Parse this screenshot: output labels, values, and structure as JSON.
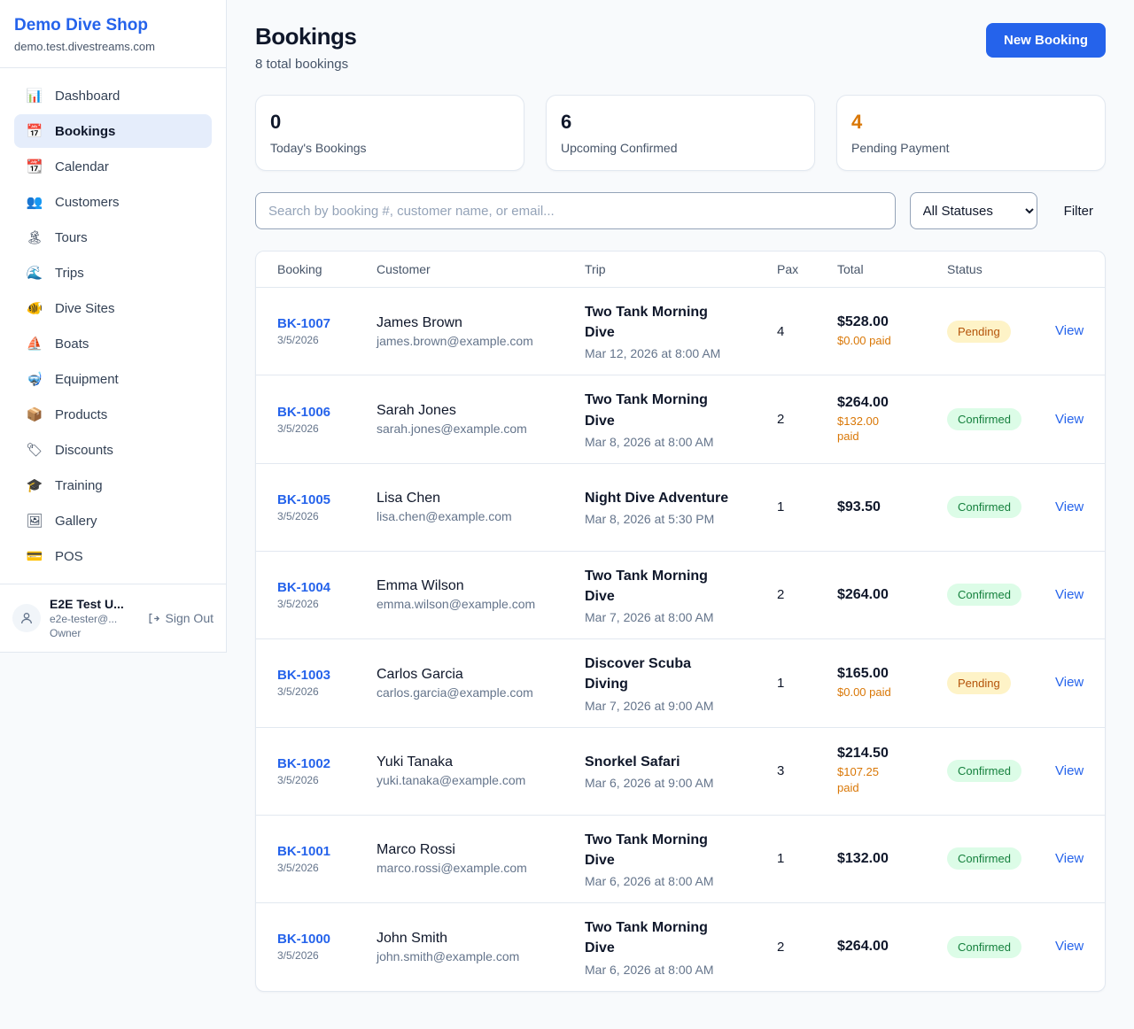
{
  "colors": {
    "accent": "#2563eb",
    "orange": "#d97706",
    "pending_bg": "#fef3c7",
    "pending_text": "#b45309",
    "confirmed_bg": "#dcfce7",
    "confirmed_text": "#15803d"
  },
  "sidebar": {
    "brand": {
      "title": "Demo Dive Shop",
      "subtitle": "demo.test.divestreams.com"
    },
    "items": [
      {
        "icon": "📊",
        "label": "Dashboard",
        "active": false
      },
      {
        "icon": "📅",
        "label": "Bookings",
        "active": true
      },
      {
        "icon": "📆",
        "label": "Calendar",
        "active": false
      },
      {
        "icon": "👥",
        "label": "Customers",
        "active": false
      },
      {
        "icon": "🏝",
        "label": "Tours",
        "active": false
      },
      {
        "icon": "🌊",
        "label": "Trips",
        "active": false
      },
      {
        "icon": "🐠",
        "label": "Dive Sites",
        "active": false
      },
      {
        "icon": "⛵",
        "label": "Boats",
        "active": false
      },
      {
        "icon": "🤿",
        "label": "Equipment",
        "active": false
      },
      {
        "icon": "📦",
        "label": "Products",
        "active": false
      },
      {
        "icon": "🏷",
        "label": "Discounts",
        "active": false
      },
      {
        "icon": "🎓",
        "label": "Training",
        "active": false
      },
      {
        "icon": "🖼",
        "label": "Gallery",
        "active": false
      },
      {
        "icon": "💳",
        "label": "POS",
        "active": false
      }
    ],
    "user": {
      "name": "E2E Test U...",
      "email": "e2e-tester@...",
      "role": "Owner",
      "signout_label": "Sign Out"
    }
  },
  "header": {
    "title": "Bookings",
    "subtitle": "8 total bookings",
    "new_booking_label": "New Booking"
  },
  "stats": [
    {
      "value": "0",
      "label": "Today's Bookings",
      "value_color": "#0f172a"
    },
    {
      "value": "6",
      "label": "Upcoming Confirmed",
      "value_color": "#0f172a"
    },
    {
      "value": "4",
      "label": "Pending Payment",
      "value_color": "#d97706"
    }
  ],
  "filters": {
    "search_placeholder": "Search by booking #, customer name, or email...",
    "status_select": "All Statuses",
    "filter_label": "Filter"
  },
  "table": {
    "headers": [
      "Booking",
      "Customer",
      "Trip",
      "Pax",
      "Total",
      "Status"
    ],
    "rows": [
      {
        "booking_id": "BK-1007",
        "booking_date": "3/5/2026",
        "customer_name": "James Brown",
        "customer_email": "james.brown@example.com",
        "trip_name": "Two Tank Morning Dive",
        "trip_time": "Mar 12, 2026 at 8:00 AM",
        "pax": "4",
        "total": "$528.00",
        "paid": "$0.00 paid",
        "status": "Pending",
        "view_label": "View"
      },
      {
        "booking_id": "BK-1006",
        "booking_date": "3/5/2026",
        "customer_name": "Sarah Jones",
        "customer_email": "sarah.jones@example.com",
        "trip_name": "Two Tank Morning Dive",
        "trip_time": "Mar 8, 2026 at 8:00 AM",
        "pax": "2",
        "total": "$264.00",
        "paid": "$132.00 paid",
        "status": "Confirmed",
        "view_label": "View"
      },
      {
        "booking_id": "BK-1005",
        "booking_date": "3/5/2026",
        "customer_name": "Lisa Chen",
        "customer_email": "lisa.chen@example.com",
        "trip_name": "Night Dive Adventure",
        "trip_time": "Mar 8, 2026 at 5:30 PM",
        "pax": "1",
        "total": "$93.50",
        "paid": "",
        "status": "Confirmed",
        "view_label": "View"
      },
      {
        "booking_id": "BK-1004",
        "booking_date": "3/5/2026",
        "customer_name": "Emma Wilson",
        "customer_email": "emma.wilson@example.com",
        "trip_name": "Two Tank Morning Dive",
        "trip_time": "Mar 7, 2026 at 8:00 AM",
        "pax": "2",
        "total": "$264.00",
        "paid": "",
        "status": "Confirmed",
        "view_label": "View"
      },
      {
        "booking_id": "BK-1003",
        "booking_date": "3/5/2026",
        "customer_name": "Carlos Garcia",
        "customer_email": "carlos.garcia@example.com",
        "trip_name": "Discover Scuba Diving",
        "trip_time": "Mar 7, 2026 at 9:00 AM",
        "pax": "1",
        "total": "$165.00",
        "paid": "$0.00 paid",
        "status": "Pending",
        "view_label": "View"
      },
      {
        "booking_id": "BK-1002",
        "booking_date": "3/5/2026",
        "customer_name": "Yuki Tanaka",
        "customer_email": "yuki.tanaka@example.com",
        "trip_name": "Snorkel Safari",
        "trip_time": "Mar 6, 2026 at 9:00 AM",
        "pax": "3",
        "total": "$214.50",
        "paid": "$107.25 paid",
        "status": "Confirmed",
        "view_label": "View"
      },
      {
        "booking_id": "BK-1001",
        "booking_date": "3/5/2026",
        "customer_name": "Marco Rossi",
        "customer_email": "marco.rossi@example.com",
        "trip_name": "Two Tank Morning Dive",
        "trip_time": "Mar 6, 2026 at 8:00 AM",
        "pax": "1",
        "total": "$132.00",
        "paid": "",
        "status": "Confirmed",
        "view_label": "View"
      },
      {
        "booking_id": "BK-1000",
        "booking_date": "3/5/2026",
        "customer_name": "John Smith",
        "customer_email": "john.smith@example.com",
        "trip_name": "Two Tank Morning Dive",
        "trip_time": "Mar 6, 2026 at 8:00 AM",
        "pax": "2",
        "total": "$264.00",
        "paid": "",
        "status": "Confirmed",
        "view_label": "View"
      }
    ]
  }
}
